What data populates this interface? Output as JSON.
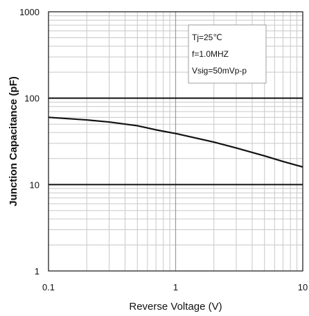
{
  "chart_data": {
    "type": "line",
    "xlabel": "Reverse Voltage (V)",
    "ylabel": "Junction Capacitance (pF)",
    "xscale": "log",
    "yscale": "log",
    "xlim": [
      0.1,
      10
    ],
    "ylim": [
      1,
      1000
    ],
    "x_ticks": [
      "0.1",
      "1",
      "10"
    ],
    "y_ticks": [
      "1",
      "10",
      "100",
      "1000"
    ],
    "grid": true,
    "annotations": [
      "Tj=25℃",
      "f=1.0MHZ",
      "Vsig=50mVp-p"
    ],
    "series": [
      {
        "x": [
          0.1,
          0.2,
          0.3,
          0.5,
          0.7,
          1,
          2,
          3,
          5,
          7,
          10
        ],
        "y": [
          60,
          56,
          53,
          48,
          43,
          39,
          31,
          26.5,
          21.5,
          18.5,
          16
        ]
      }
    ],
    "colors": {
      "line": "#111111",
      "grid_minor": "#c8c8c8",
      "grid_major": "#111111"
    }
  }
}
